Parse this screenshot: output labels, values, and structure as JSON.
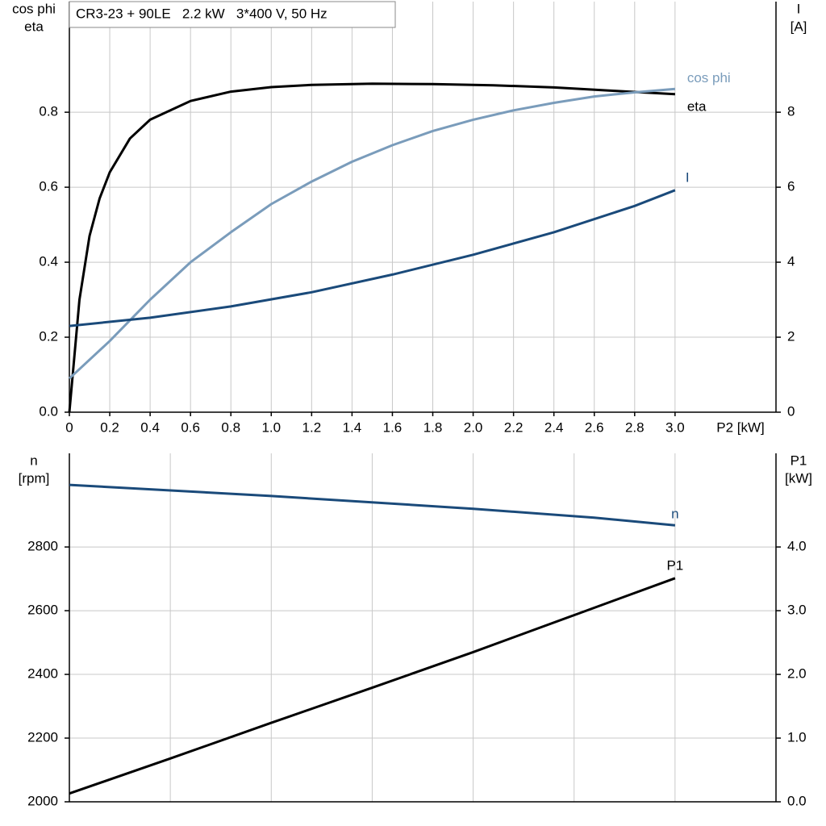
{
  "chart_data": [
    {
      "type": "line",
      "title": "CR3-23 + 90LE   2.2 kW   3*400 V, 50 Hz",
      "ylabel": [
        "cos phi",
        "eta"
      ],
      "y2label": [
        "I",
        "[A]"
      ],
      "xlabel": "P2 [kW]",
      "xlim": [
        0,
        3.5
      ],
      "ylim": [
        0,
        1.095
      ],
      "y2lim": [
        0,
        10.95
      ],
      "grid": true,
      "show_xtick_labels": true,
      "xticks": [
        0,
        0.2,
        0.4,
        0.6,
        0.8,
        {
          "value": 1,
          "label": "1.0"
        },
        1.2,
        1.4,
        1.6,
        1.8,
        {
          "value": 2,
          "label": "2.0"
        },
        2.2,
        2.4,
        2.6,
        2.8,
        {
          "value": 3,
          "label": "3.0"
        }
      ],
      "yticks": [
        {
          "value": 0,
          "label": "0.0"
        },
        0.2,
        0.4,
        0.6,
        0.8
      ],
      "y2ticks": [
        0,
        2,
        4,
        6,
        8
      ],
      "series": [
        {
          "name": "eta",
          "color": "#000000",
          "axis": "y",
          "x": [
            0,
            0.05,
            0.1,
            0.15,
            0.2,
            0.3,
            0.4,
            0.6,
            0.8,
            1.0,
            1.2,
            1.5,
            1.8,
            2.1,
            2.4,
            2.7,
            3.0
          ],
          "values": [
            0,
            0.3,
            0.47,
            0.57,
            0.64,
            0.73,
            0.78,
            0.83,
            0.855,
            0.867,
            0.873,
            0.876,
            0.875,
            0.872,
            0.866,
            0.857,
            0.848
          ]
        },
        {
          "name": "cos phi",
          "color": "#7a9cbb",
          "axis": "y",
          "x": [
            0,
            0.2,
            0.4,
            0.6,
            0.8,
            1.0,
            1.2,
            1.4,
            1.6,
            1.8,
            2.0,
            2.2,
            2.4,
            2.6,
            2.8,
            3.0
          ],
          "values": [
            0.09,
            0.19,
            0.3,
            0.4,
            0.48,
            0.555,
            0.615,
            0.668,
            0.712,
            0.75,
            0.78,
            0.805,
            0.825,
            0.842,
            0.853,
            0.862
          ]
        },
        {
          "name": "I",
          "color": "#1a4a7a",
          "axis": "y2",
          "x": [
            0,
            0.4,
            0.8,
            1.2,
            1.6,
            2.0,
            2.4,
            2.8,
            3.0
          ],
          "values": [
            2.3,
            2.52,
            2.82,
            3.2,
            3.67,
            4.2,
            4.8,
            5.5,
            5.92
          ]
        }
      ]
    },
    {
      "type": "line",
      "ylabel": [
        "n",
        "[rpm]"
      ],
      "y2label": [
        "P1",
        "[kW]"
      ],
      "xlim": [
        0,
        3.5
      ],
      "ylim": [
        2000,
        3094
      ],
      "y2lim": [
        0,
        5.47
      ],
      "grid": true,
      "show_xtick_labels": false,
      "xticks": [
        0,
        0.5,
        1,
        1.5,
        2,
        2.5,
        3,
        3.5
      ],
      "yticks": [
        2000,
        2200,
        2400,
        2600,
        2800
      ],
      "y2ticks": [
        {
          "value": 0,
          "label": "0.0"
        },
        {
          "value": 1,
          "label": "1.0"
        },
        {
          "value": 2,
          "label": "2.0"
        },
        {
          "value": 3,
          "label": "3.0"
        },
        {
          "value": 4,
          "label": "4.0"
        }
      ],
      "series": [
        {
          "name": "n",
          "color": "#1a4a7a",
          "axis": "y",
          "x": [
            0,
            1,
            2,
            2.6,
            3.0
          ],
          "values": [
            2995,
            2960,
            2920,
            2892,
            2868
          ]
        },
        {
          "name": "P1",
          "color": "#000000",
          "axis": "y2",
          "x": [
            0,
            0.5,
            1,
            1.5,
            2,
            2.5,
            3
          ],
          "values": [
            0.13,
            0.68,
            1.24,
            1.79,
            2.35,
            2.93,
            3.51
          ]
        }
      ]
    }
  ]
}
